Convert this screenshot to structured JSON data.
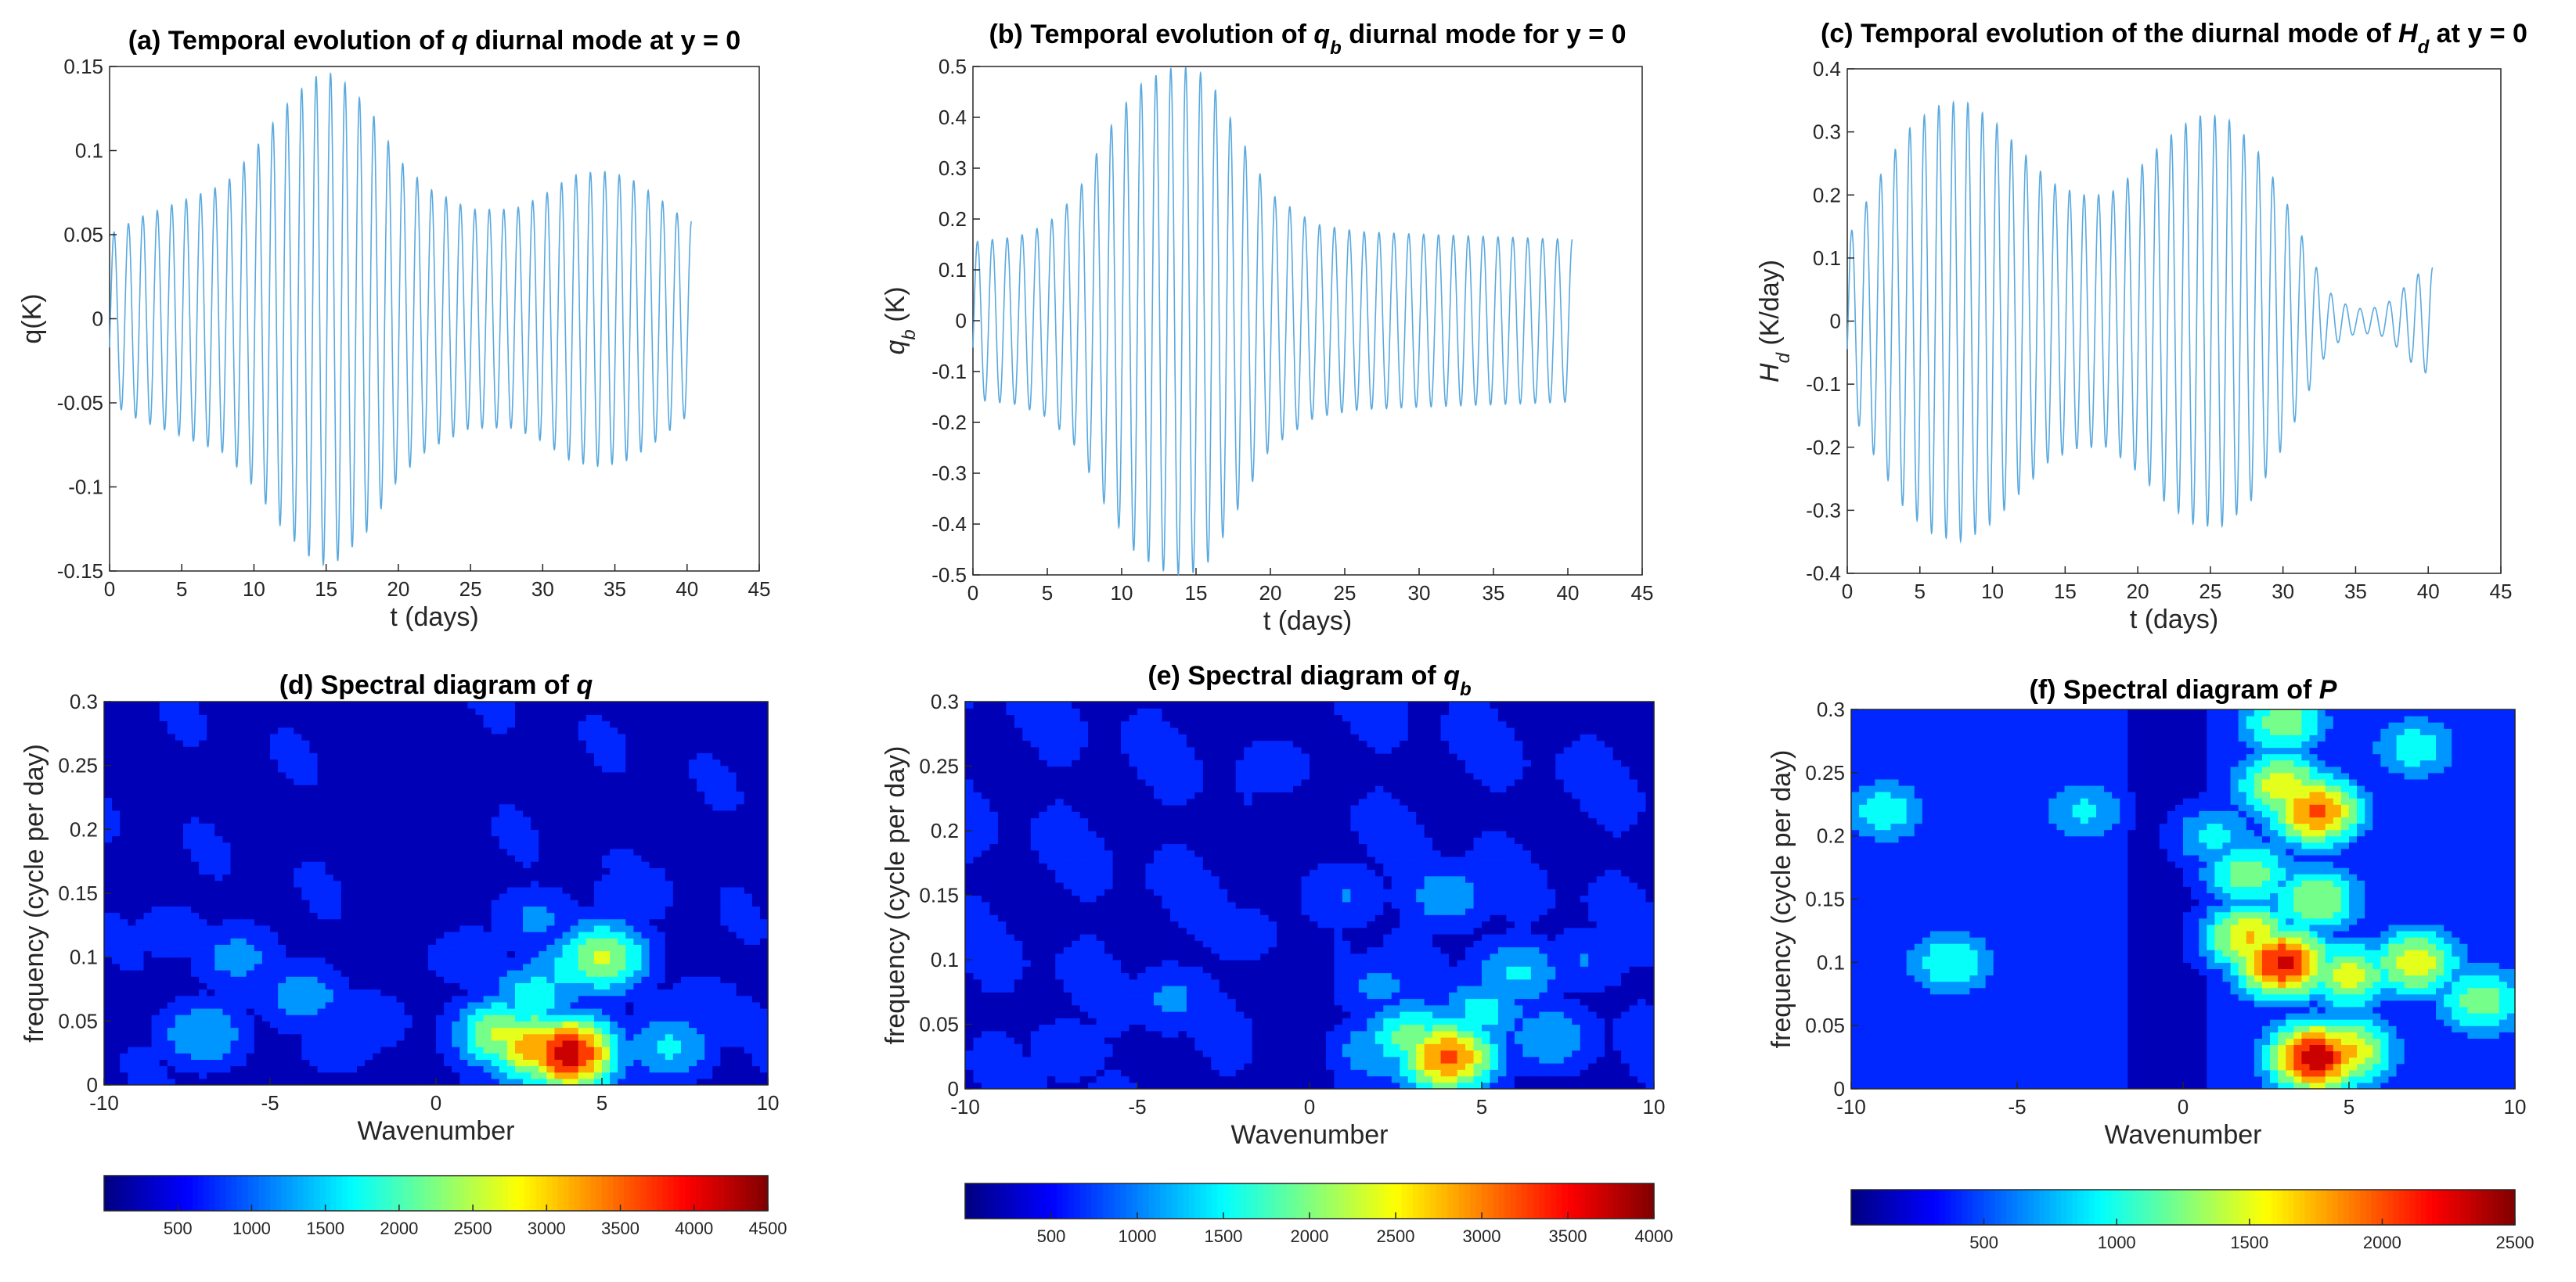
{
  "chart_data": [
    {
      "id": "a",
      "type": "line",
      "title": "(a) Temporal evolution of q diurnal mode at y = 0",
      "title_parts": [
        "(a) Temporal evolution of ",
        "q",
        " diurnal mode at y = 0"
      ],
      "xlabel": "t (days)",
      "ylabel": "q(K)",
      "xlim": [
        0,
        45
      ],
      "ylim": [
        -0.15,
        0.15
      ],
      "xticks": [
        "0",
        "5",
        "10",
        "15",
        "20",
        "25",
        "30",
        "35",
        "40",
        "45"
      ],
      "yticks": [
        "-0.15",
        "-0.1",
        "-0.05",
        "0",
        "0.05",
        "0.1",
        "0.15"
      ],
      "series": [
        {
          "name": "q diurnal mode",
          "color": "#5aa9df",
          "t_end": 40.3,
          "period_days": 1.0,
          "envelope_t": [
            0,
            2,
            5,
            8,
            10,
            12,
            14,
            15,
            16,
            18,
            20,
            22,
            25,
            28,
            30,
            32,
            34,
            36,
            38,
            40
          ],
          "envelope": [
            0.05,
            0.06,
            0.07,
            0.08,
            0.1,
            0.125,
            0.143,
            0.147,
            0.143,
            0.125,
            0.095,
            0.078,
            0.065,
            0.065,
            0.073,
            0.085,
            0.088,
            0.084,
            0.072,
            0.058
          ]
        }
      ]
    },
    {
      "id": "b",
      "type": "line",
      "title": "(b) Temporal evolution of qb diurnal mode for y = 0",
      "title_parts": [
        "(b) Temporal evolution of ",
        "q",
        "b",
        " diurnal mode for y = 0"
      ],
      "xlabel": "t (days)",
      "ylabel": "qb (K)",
      "ylabel_parts": [
        "q",
        "b",
        " (K)"
      ],
      "xlim": [
        0,
        45
      ],
      "ylim": [
        -0.5,
        0.5
      ],
      "xticks": [
        "0",
        "5",
        "10",
        "15",
        "20",
        "25",
        "30",
        "35",
        "40",
        "45"
      ],
      "yticks": [
        "-0.5",
        "-0.4",
        "-0.3",
        "-0.2",
        "-0.1",
        "0",
        "0.1",
        "0.2",
        "0.3",
        "0.4",
        "0.5"
      ],
      "series": [
        {
          "name": "qb diurnal mode",
          "color": "#5aa9df",
          "t_end": 40.3,
          "period_days": 1.0,
          "envelope_t": [
            0,
            3,
            5,
            7,
            9,
            11,
            13,
            14,
            15,
            16,
            18,
            20,
            23,
            26,
            30,
            35,
            40
          ],
          "envelope": [
            0.155,
            0.165,
            0.19,
            0.25,
            0.37,
            0.46,
            0.495,
            0.5,
            0.495,
            0.47,
            0.36,
            0.25,
            0.19,
            0.175,
            0.17,
            0.165,
            0.16
          ]
        }
      ]
    },
    {
      "id": "c",
      "type": "line",
      "title": "(c) Temporal evolution of the diurnal mode of Hd at y = 0",
      "title_parts": [
        "(c) Temporal evolution of the diurnal mode of ",
        "H",
        "d",
        " at y = 0"
      ],
      "xlabel": "t (days)",
      "ylabel": "Hd (K/day)",
      "ylabel_parts": [
        "H",
        "d",
        " (K/day)"
      ],
      "xlim": [
        0,
        45
      ],
      "ylim": [
        -0.4,
        0.4
      ],
      "xticks": [
        "0",
        "5",
        "10",
        "15",
        "20",
        "25",
        "30",
        "35",
        "40",
        "45"
      ],
      "yticks": [
        "-0.4",
        "-0.3",
        "-0.2",
        "-0.1",
        "0",
        "0.1",
        "0.2",
        "0.3",
        "0.4"
      ],
      "series": [
        {
          "name": "Hd diurnal mode",
          "color": "#5aa9df",
          "t_end": 40.3,
          "period_days": 1.0,
          "envelope_t": [
            0,
            2,
            4,
            6,
            8,
            10,
            12,
            14,
            16,
            18,
            20,
            22,
            24,
            26,
            28,
            30,
            31,
            32,
            33,
            34,
            35,
            36,
            37,
            38,
            39,
            40
          ],
          "envelope": [
            0.13,
            0.22,
            0.3,
            0.34,
            0.35,
            0.32,
            0.27,
            0.22,
            0.2,
            0.2,
            0.24,
            0.29,
            0.325,
            0.325,
            0.28,
            0.2,
            0.15,
            0.1,
            0.05,
            0.03,
            0.02,
            0.02,
            0.025,
            0.045,
            0.07,
            0.085
          ]
        }
      ]
    },
    {
      "id": "d",
      "type": "heatmap",
      "title": "(d) Spectral diagram of q",
      "title_parts": [
        "(d) Spectral diagram of ",
        "q"
      ],
      "xlabel": "Wavenumber",
      "ylabel": "frequency (cycle per day)",
      "xlim": [
        -10,
        10
      ],
      "ylim": [
        0,
        0.3
      ],
      "xticks": [
        "-10",
        "-5",
        "0",
        "5",
        "10"
      ],
      "yticks": [
        "0",
        "0.05",
        "0.1",
        "0.15",
        "0.2",
        "0.25",
        "0.3"
      ],
      "colorbar_ticks": [
        "500",
        "1000",
        "1500",
        "2000",
        "2500",
        "3000",
        "3500",
        "4000",
        "4500"
      ],
      "clim": [
        0,
        4500
      ],
      "hotspots": [
        {
          "k": -7,
          "f": 0.04,
          "v": 1500
        },
        {
          "k": -6,
          "f": 0.1,
          "v": 1200
        },
        {
          "k": -4,
          "f": 0.07,
          "v": 1300
        },
        {
          "k": -3,
          "f": 0.03,
          "v": 800
        },
        {
          "k": -8,
          "f": 0.12,
          "v": 800
        },
        {
          "k": -2,
          "f": 0.05,
          "v": 900
        },
        {
          "k": 2,
          "f": 0.04,
          "v": 2600
        },
        {
          "k": 3,
          "f": 0.03,
          "v": 3400
        },
        {
          "k": 4,
          "f": 0.025,
          "v": 4300
        },
        {
          "k": 3,
          "f": 0.07,
          "v": 1800
        },
        {
          "k": 5,
          "f": 0.1,
          "v": 2600
        },
        {
          "k": 4,
          "f": 0.09,
          "v": 1700
        },
        {
          "k": 7,
          "f": 0.03,
          "v": 1600
        },
        {
          "k": 8,
          "f": 0.06,
          "v": 1000
        },
        {
          "k": 3,
          "f": 0.13,
          "v": 1100
        },
        {
          "k": 6,
          "f": 0.15,
          "v": 900
        },
        {
          "k": 9,
          "f": 0.05,
          "v": 800
        },
        {
          "k": 1,
          "f": 0.1,
          "v": 900
        }
      ]
    },
    {
      "id": "e",
      "type": "heatmap",
      "title": "(e) Spectral diagram of qb",
      "title_parts": [
        "(e) Spectral diagram of ",
        "q",
        "b"
      ],
      "xlabel": "Wavenumber",
      "ylabel": "frequency (cycle per day)",
      "xlim": [
        -10,
        10
      ],
      "ylim": [
        0,
        0.3
      ],
      "xticks": [
        "-10",
        "-5",
        "0",
        "5",
        "10"
      ],
      "yticks": [
        "0",
        "0.05",
        "0.1",
        "0.15",
        "0.2",
        "0.25",
        "0.3"
      ],
      "colorbar_ticks": [
        "500",
        "1000",
        "1500",
        "2000",
        "2500",
        "3000",
        "3500",
        "4000"
      ],
      "clim": [
        0,
        4000
      ],
      "hotspots": [
        {
          "k": 3,
          "f": 0.04,
          "v": 2000
        },
        {
          "k": 4,
          "f": 0.025,
          "v": 3200
        },
        {
          "k": 5,
          "f": 0.06,
          "v": 1500
        },
        {
          "k": 6,
          "f": 0.09,
          "v": 1400
        },
        {
          "k": 4,
          "f": 0.15,
          "v": 1200
        },
        {
          "k": -4,
          "f": 0.07,
          "v": 1000
        },
        {
          "k": -7,
          "f": 0.03,
          "v": 800
        },
        {
          "k": -2,
          "f": 0.12,
          "v": 700
        },
        {
          "k": 7,
          "f": 0.04,
          "v": 1300
        },
        {
          "k": 2,
          "f": 0.08,
          "v": 1000
        },
        {
          "k": -1,
          "f": 0.25,
          "v": 700
        },
        {
          "k": 1,
          "f": 0.15,
          "v": 900
        },
        {
          "k": 8,
          "f": 0.1,
          "v": 900
        },
        {
          "k": 2,
          "f": 0.03,
          "v": 1300
        }
      ]
    },
    {
      "id": "f",
      "type": "heatmap",
      "title": "(f) Spectral diagram of P",
      "title_parts": [
        "(f) Spectral diagram of ",
        "P"
      ],
      "xlabel": "Wavenumber",
      "ylabel": "frequency (cycle per day)",
      "xlim": [
        -10,
        10
      ],
      "ylim": [
        0,
        0.3
      ],
      "xticks": [
        "-10",
        "-5",
        "0",
        "5",
        "10"
      ],
      "yticks": [
        "0",
        "0.05",
        "0.1",
        "0.15",
        "0.2",
        "0.25",
        "0.3"
      ],
      "colorbar_ticks": [
        "500",
        "1000",
        "1500",
        "2000",
        "2500"
      ],
      "clim": [
        0,
        2500
      ],
      "hotspots": [
        {
          "k": 4,
          "f": 0.025,
          "v": 2400
        },
        {
          "k": 5,
          "f": 0.03,
          "v": 1700
        },
        {
          "k": 3,
          "f": 0.1,
          "v": 2300
        },
        {
          "k": 2,
          "f": 0.12,
          "v": 1700
        },
        {
          "k": 5,
          "f": 0.09,
          "v": 1500
        },
        {
          "k": 7,
          "f": 0.1,
          "v": 1600
        },
        {
          "k": 4,
          "f": 0.22,
          "v": 2000
        },
        {
          "k": 3,
          "f": 0.24,
          "v": 1600
        },
        {
          "k": 4,
          "f": 0.15,
          "v": 1400
        },
        {
          "k": 2,
          "f": 0.17,
          "v": 1300
        },
        {
          "k": -7,
          "f": 0.1,
          "v": 1100
        },
        {
          "k": -9,
          "f": 0.22,
          "v": 1000
        },
        {
          "k": 9,
          "f": 0.07,
          "v": 1300
        },
        {
          "k": -3,
          "f": 0.22,
          "v": 900
        },
        {
          "k": 1,
          "f": 0.2,
          "v": 900
        },
        {
          "k": 7,
          "f": 0.27,
          "v": 1000
        },
        {
          "k": 3,
          "f": 0.29,
          "v": 1300
        }
      ]
    }
  ]
}
